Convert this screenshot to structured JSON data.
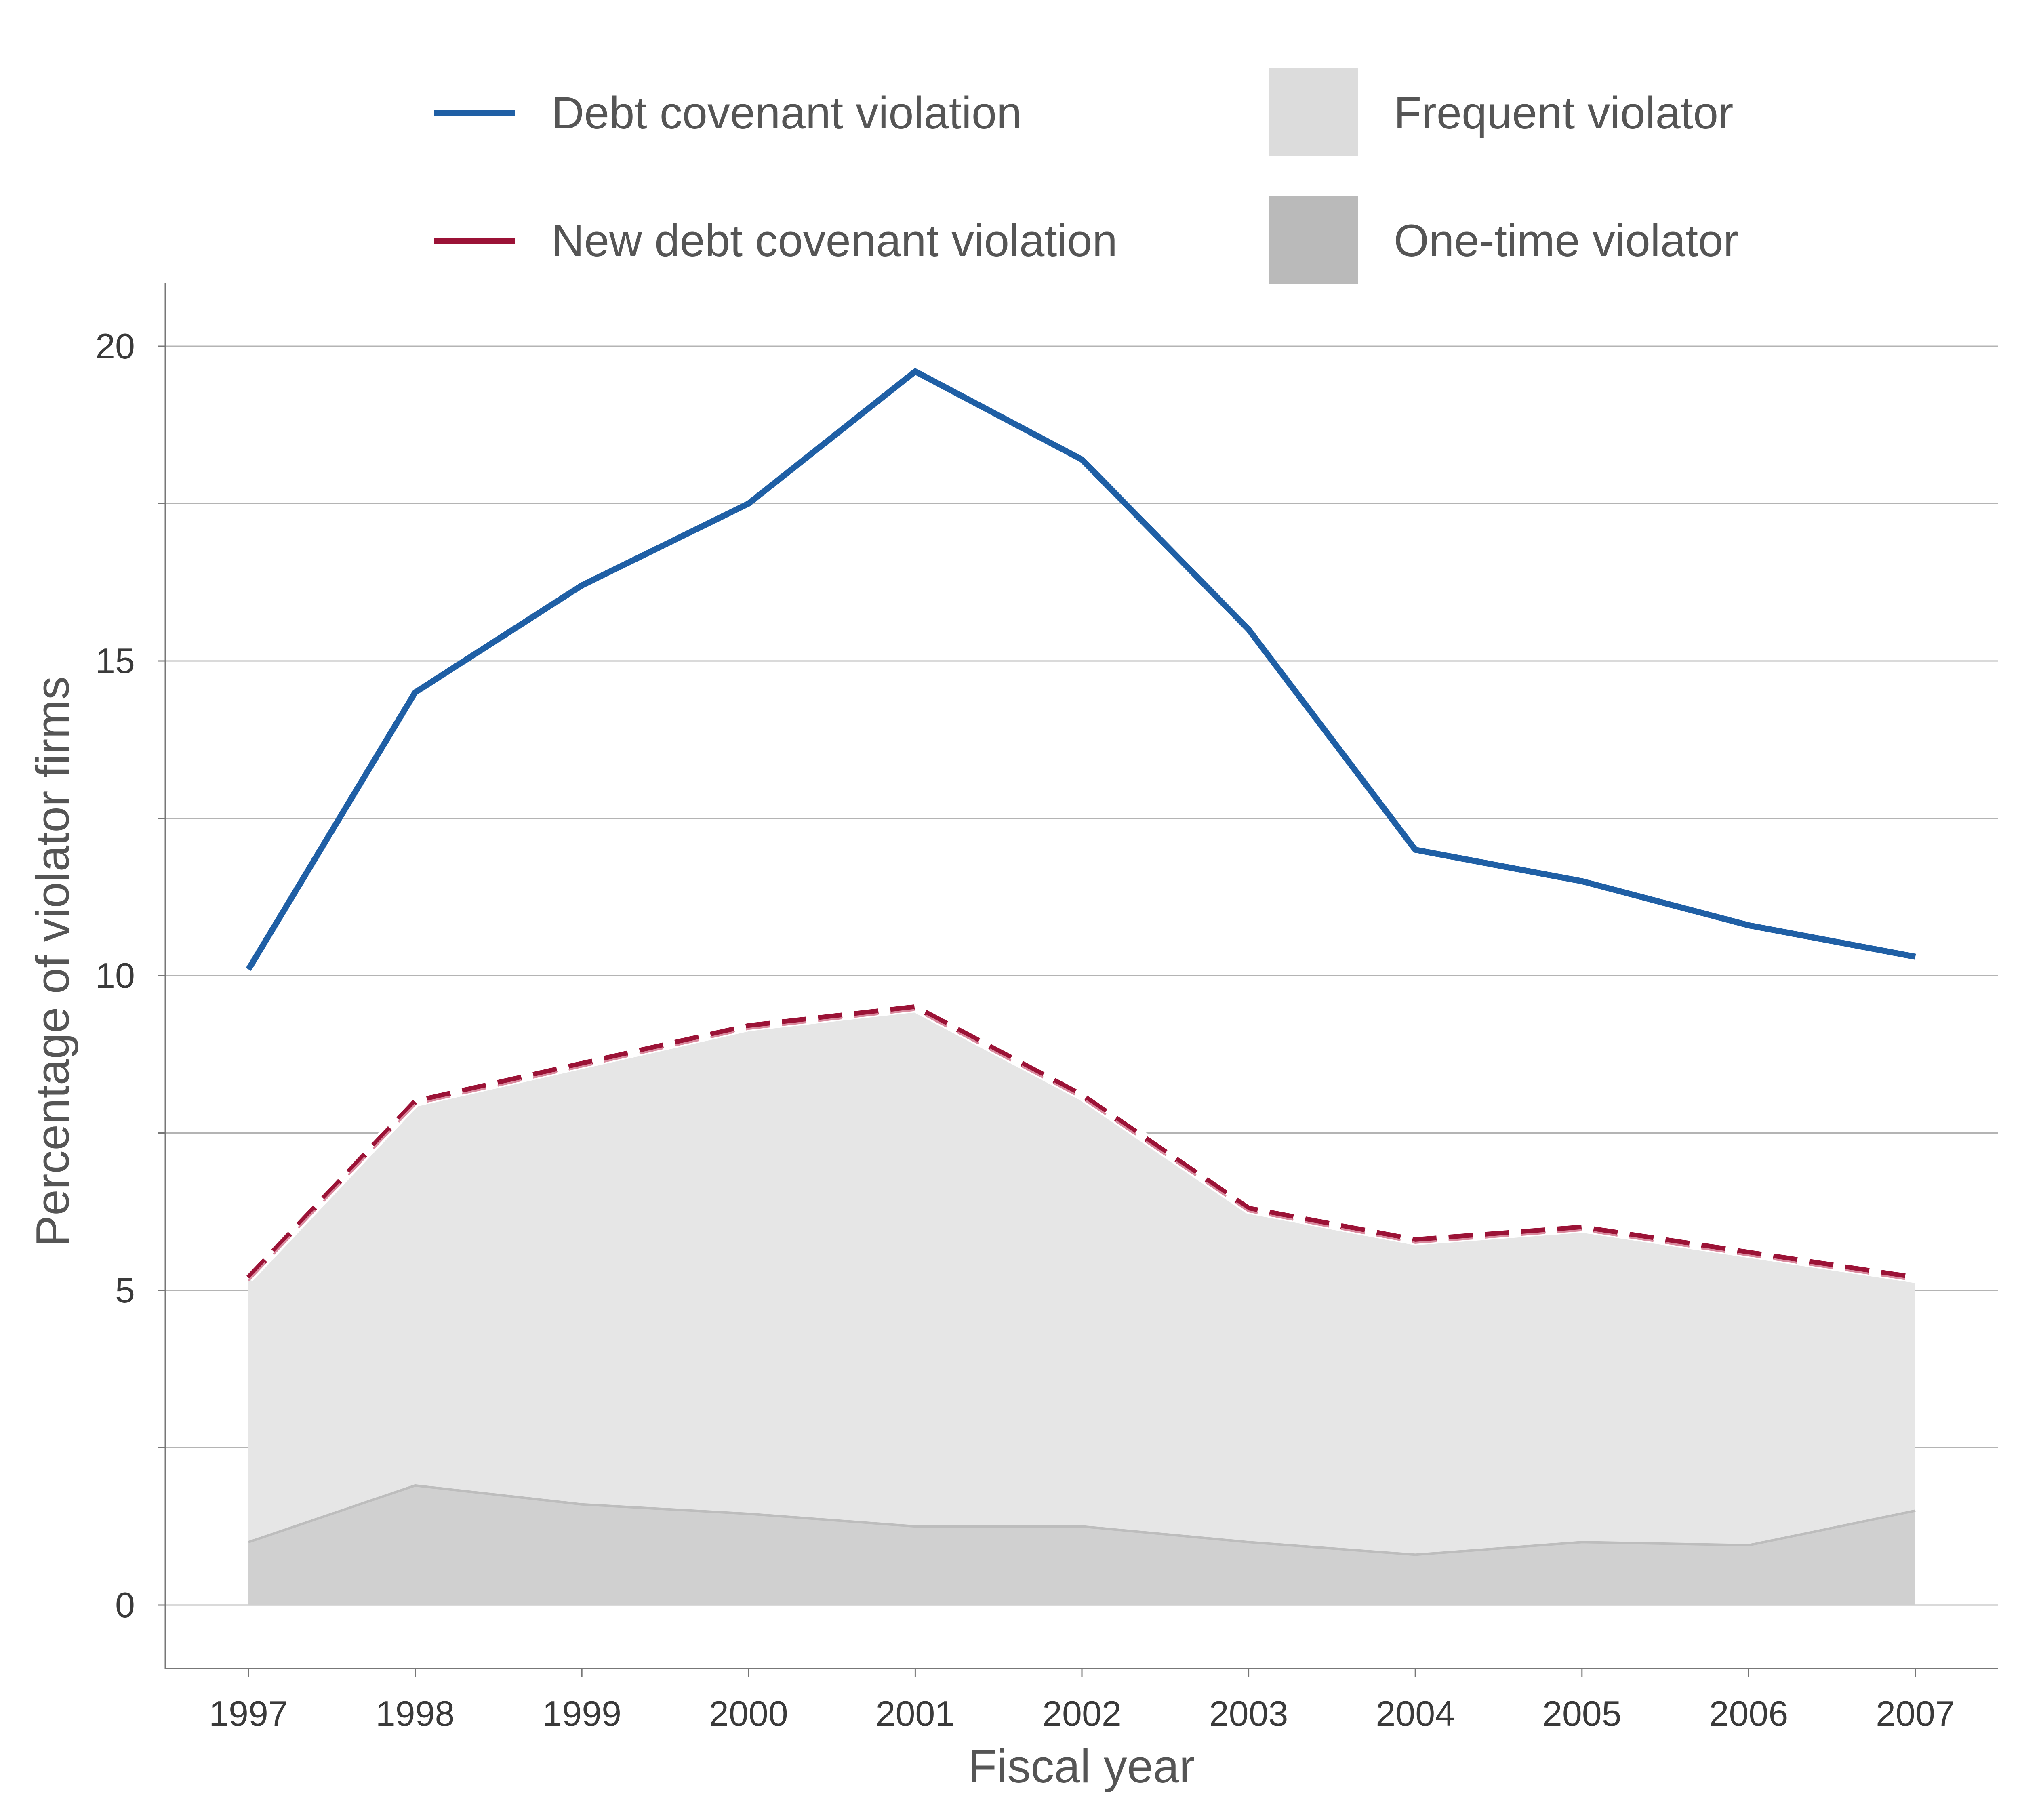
{
  "colors": {
    "debt_line": "#1f5fa5",
    "new_debt_line": "#9b1236",
    "new_debt_highlight": "#d98a9e",
    "frequent_fill": "#e6e6e6",
    "one_time_fill": "#d0d0d0",
    "one_time_edge": "#bdbdbd",
    "legend_frequent": "#dcdcdc",
    "legend_one_time": "#bababa"
  },
  "legend": {
    "debt": "Debt covenant violation",
    "new_debt": "New debt covenant violation",
    "frequent": "Frequent violator",
    "one_time": "One-time violator"
  },
  "chart_data": {
    "type": "line",
    "xlabel": "Fiscal year",
    "ylabel": "Percentage of violator firms",
    "x": [
      "1997",
      "1998",
      "1999",
      "2000",
      "2001",
      "2002",
      "2003",
      "2004",
      "2005",
      "2006",
      "2007"
    ],
    "ylim": [
      -1,
      21
    ],
    "yticks": [
      0,
      5,
      10,
      15,
      20
    ],
    "ygrid": [
      0,
      2.5,
      5,
      7.5,
      10,
      12.5,
      15,
      17.5,
      20
    ],
    "grid": true,
    "legend_position": "top",
    "series": [
      {
        "key": "debt",
        "name": "Debt covenant violation",
        "style": "solid",
        "values": [
          10.1,
          14.5,
          16.2,
          17.5,
          19.6,
          18.2,
          15.5,
          12.0,
          11.5,
          10.8,
          10.3
        ]
      },
      {
        "key": "new_debt",
        "name": "New debt covenant violation",
        "style": "dashed",
        "values": [
          5.2,
          8.0,
          8.6,
          9.2,
          9.5,
          8.1,
          6.3,
          5.8,
          6.0,
          5.6,
          5.2
        ]
      },
      {
        "key": "frequent",
        "name": "Frequent violator",
        "style": "area",
        "values": [
          5.2,
          8.0,
          8.6,
          9.2,
          9.5,
          8.1,
          6.3,
          5.8,
          6.0,
          5.6,
          5.2
        ]
      },
      {
        "key": "one_time",
        "name": "One-time violator",
        "style": "area",
        "values": [
          1.0,
          1.9,
          1.6,
          1.45,
          1.25,
          1.25,
          1.0,
          0.8,
          1.0,
          0.95,
          1.5
        ]
      }
    ]
  }
}
